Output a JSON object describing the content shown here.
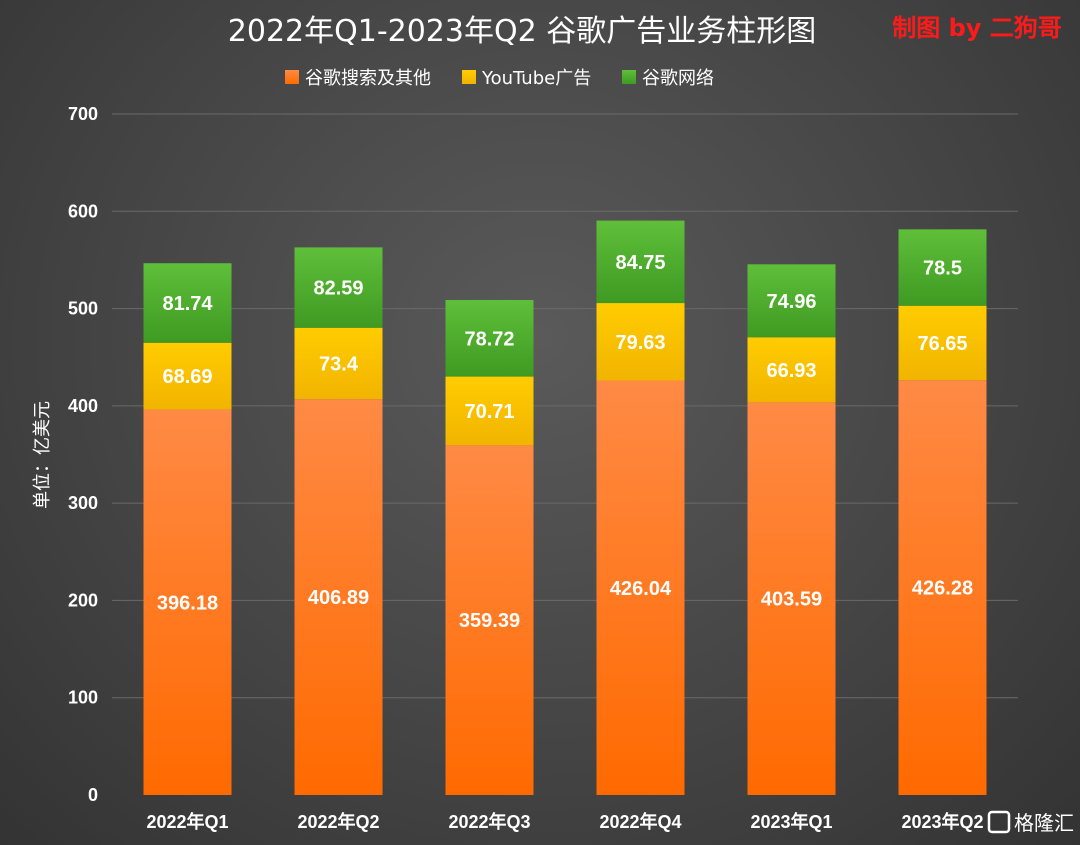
{
  "header": {
    "title": "2022年Q1-2023年Q2 谷歌广告业务柱形图",
    "credit": "制图 by 二狗哥"
  },
  "watermark": {
    "text": "格隆汇",
    "icon": "gelonghui-logo-icon"
  },
  "colors": {
    "search": "#ff7212",
    "youtube": "#ffc000",
    "network": "#4aa32a"
  },
  "chart_data": {
    "type": "bar",
    "stacked": true,
    "categories": [
      "2022年Q1",
      "2022年Q2",
      "2022年Q3",
      "2022年Q4",
      "2023年Q1",
      "2023年Q2"
    ],
    "series": [
      {
        "name": "谷歌搜索及其他",
        "values": [
          396.18,
          406.89,
          359.39,
          426.04,
          403.59,
          426.28
        ]
      },
      {
        "name": "YouTube广告",
        "values": [
          68.69,
          73.4,
          70.71,
          79.63,
          66.93,
          76.65
        ]
      },
      {
        "name": "谷歌网络",
        "values": [
          81.74,
          82.59,
          78.72,
          84.75,
          74.96,
          78.5
        ]
      }
    ],
    "ylabel": "单位：亿美元",
    "ylim": [
      0,
      700
    ],
    "yticks": [
      0,
      100,
      200,
      300,
      400,
      500,
      600,
      700
    ],
    "grid": true,
    "legend": "top-center"
  }
}
